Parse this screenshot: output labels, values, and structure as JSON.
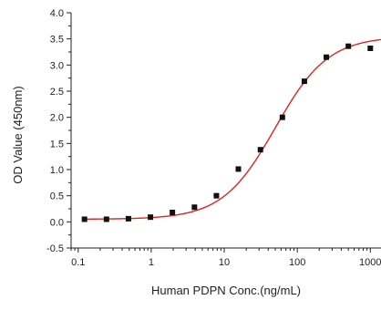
{
  "chart_data": {
    "type": "scatter",
    "title": "",
    "xlabel": "Human PDPN Conc.(ng/mL)",
    "ylabel": "OD Value (450nm)",
    "xscale": "log",
    "xlim": [
      0.08,
      1400
    ],
    "ylim": [
      -0.5,
      4.0
    ],
    "xticks": [
      0.1,
      1,
      10,
      100,
      1000
    ],
    "xtick_labels": [
      "0.1",
      "1",
      "10",
      "100",
      "1000"
    ],
    "yticks": [
      -0.5,
      0.0,
      0.5,
      1.0,
      1.5,
      2.0,
      2.5,
      3.0,
      3.5,
      4.0
    ],
    "ytick_labels": [
      "-0.5",
      "0.0",
      "0.5",
      "1.0",
      "1.5",
      "2.0",
      "2.5",
      "3.0",
      "3.5",
      "4.0"
    ],
    "grid": false,
    "series": [
      {
        "marker": "square",
        "color": "#111111",
        "x": [
          0.122,
          0.244,
          0.488,
          0.977,
          1.95,
          3.91,
          7.81,
          15.6,
          31.3,
          62.5,
          125,
          250,
          500,
          1000
        ],
        "y": [
          0.05,
          0.05,
          0.06,
          0.09,
          0.18,
          0.28,
          0.5,
          1.01,
          1.38,
          2.0,
          2.69,
          3.15,
          3.36,
          3.32
        ]
      }
    ],
    "fit_curve": {
      "color": "#e8201c",
      "model": "4PL",
      "bottom": 0.05,
      "top": 3.55,
      "ec50": 50,
      "hill": 1.2
    },
    "axis_color": "#222222"
  }
}
